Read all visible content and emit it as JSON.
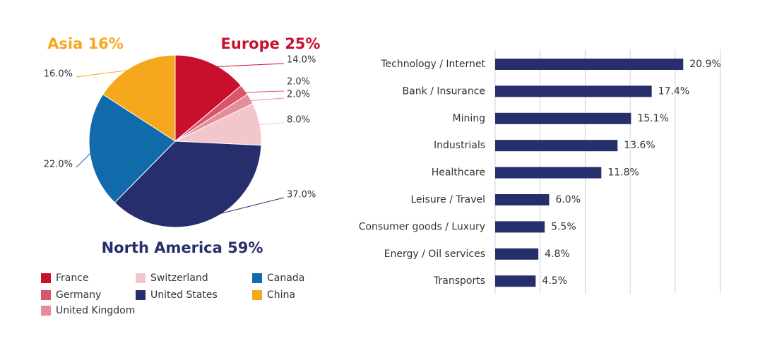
{
  "chart_data": [
    {
      "type": "pie",
      "region_labels": [
        {
          "text": "Asia 16%",
          "color": "#F5A81C"
        },
        {
          "text": "Europe 25%",
          "color": "#C8102E"
        },
        {
          "text": "North America 59%",
          "color": "#262F6B"
        }
      ],
      "slices": [
        {
          "name": "France",
          "value": 14.0,
          "label": "14.0%",
          "color": "#C8102E"
        },
        {
          "name": "Germany",
          "value": 2.0,
          "label": "2.0%",
          "color": "#D7566A"
        },
        {
          "name": "United Kingdom",
          "value": 2.0,
          "label": "2.0%",
          "color": "#E48E99"
        },
        {
          "name": "Switzerland",
          "value": 8.0,
          "label": "8.0%",
          "color": "#F2C6CC"
        },
        {
          "name": "United States",
          "value": 37.0,
          "label": "37.0%",
          "color": "#262F6B"
        },
        {
          "name": "Canada",
          "value": 22.0,
          "label": "22.0%",
          "color": "#116BAA"
        },
        {
          "name": "China",
          "value": 16.0,
          "label": "16.0%",
          "color": "#F5A81C"
        }
      ],
      "legend": [
        {
          "name": "France",
          "color": "#C8102E"
        },
        {
          "name": "Germany",
          "color": "#D7566A"
        },
        {
          "name": "United Kingdom",
          "color": "#E48E99"
        },
        {
          "name": "Switzerland",
          "color": "#F2C6CC"
        },
        {
          "name": "United States",
          "color": "#262F6B"
        },
        {
          "name": "Canada",
          "color": "#116BAA"
        },
        {
          "name": "China",
          "color": "#F5A81C"
        }
      ],
      "legend_placement": "bottom"
    },
    {
      "type": "bar",
      "orientation": "horizontal",
      "categories": [
        "Technology / Internet",
        "Bank / Insurance",
        "Mining",
        "Industrials",
        "Healthcare",
        "Leisure / Travel",
        "Consumer goods / Luxury",
        "Energy / Oil services",
        "Transports"
      ],
      "values": [
        20.9,
        17.4,
        15.1,
        13.6,
        11.8,
        6.0,
        5.5,
        4.8,
        4.5
      ],
      "value_labels": [
        "20.9%",
        "17.4%",
        "15.1%",
        "13.6%",
        "11.8%",
        "6.0%",
        "5.5%",
        "4.8%",
        "4.5%"
      ],
      "bar_color": "#262F6B",
      "xlim": [
        0,
        25
      ],
      "grid": true
    }
  ]
}
